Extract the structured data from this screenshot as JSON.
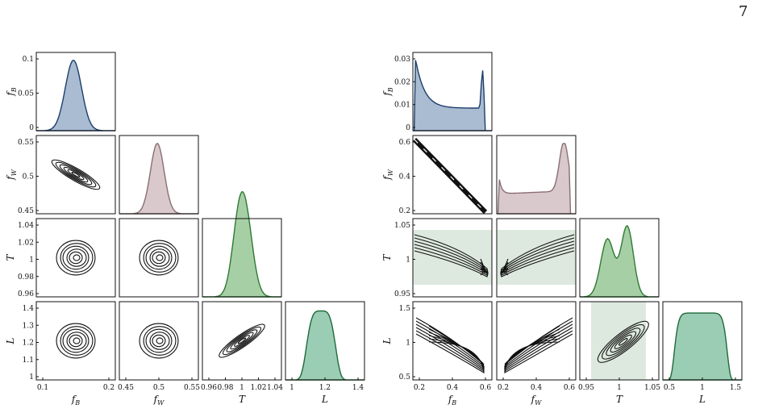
{
  "page_number": "7",
  "colors": {
    "fB_fill": "#a9bcd1",
    "fB_line": "#1c3d6b",
    "fW_fill": "#d9c8cc",
    "fW_line": "#8a6f74",
    "T_fill": "#a7cfa6",
    "T_line": "#2d7a32",
    "L_fill": "#9bccb4",
    "L_line": "#1e6b3a",
    "band": "#dde9df",
    "contour": "#111111"
  },
  "corner_plots": [
    {
      "name": "left",
      "params": [
        {
          "sym": "f",
          "sub": "B",
          "ticks": [
            "0.1",
            "0.2"
          ]
        },
        {
          "sym": "f",
          "sub": "W",
          "ticks": [
            "0.45",
            "0.5",
            "0.55"
          ]
        },
        {
          "sym": "T",
          "sub": "",
          "ticks": [
            "0.96",
            "0.98",
            "1",
            "1.02",
            "1.04"
          ]
        },
        {
          "sym": "L",
          "sub": "",
          "ticks": [
            "1",
            "1.2",
            "1.4"
          ]
        }
      ],
      "diag_yticks": [
        "0",
        "0.05",
        "0.1"
      ],
      "row_yticks": [
        [
          "0.45",
          "0.5",
          "0.55"
        ],
        [
          "0.96",
          "0.98",
          "1",
          "1.02",
          "1.04"
        ],
        [
          "1",
          "1.1",
          "1.2",
          "1.3",
          "1.4"
        ]
      ]
    },
    {
      "name": "right",
      "params": [
        {
          "sym": "f",
          "sub": "B",
          "ticks": [
            "0.2",
            "0.4",
            "0.6"
          ]
        },
        {
          "sym": "f",
          "sub": "W",
          "ticks": [
            "0.2",
            "0.4",
            "0.6"
          ]
        },
        {
          "sym": "T",
          "sub": "",
          "ticks": [
            "0.95",
            "1",
            "1.05"
          ]
        },
        {
          "sym": "L",
          "sub": "",
          "ticks": [
            "0.5",
            "1",
            "1.5"
          ]
        }
      ],
      "diag_yticks": [
        "0",
        "0.01",
        "0.02",
        "0.03"
      ],
      "row_yticks": [
        [
          "0.2",
          "0.4",
          "0.6"
        ],
        [
          "0.95",
          "1",
          "1.05"
        ],
        [
          "0.5",
          "1",
          "1.5"
        ]
      ]
    }
  ]
}
